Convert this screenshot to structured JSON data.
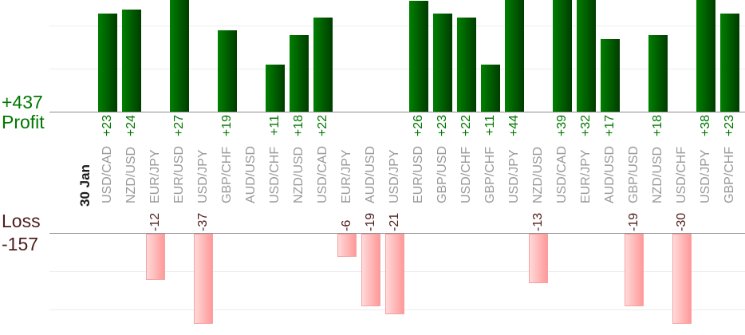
{
  "chart_data": {
    "type": "bar",
    "date": "30 Jan",
    "categories": [
      "USD/CAD",
      "NZD/USD",
      "EUR/JPY",
      "EUR/USD",
      "USD/JPY",
      "GBP/CHF",
      "AUD/USD",
      "USD/CHF",
      "NZD/USD",
      "USD/CAD",
      "EUR/JPY",
      "AUD/USD",
      "USD/JPY",
      "EUR/USD",
      "GBP/USD",
      "USD/CHF",
      "GBP/CHF",
      "USD/JPY",
      "NZD/USD",
      "USD/CAD",
      "EUR/JPY",
      "AUD/USD",
      "GBP/USD",
      "NZD/USD",
      "USD/CHF",
      "USD/JPY",
      "GBP/CHF"
    ],
    "values": [
      23,
      24,
      -12,
      27,
      -37,
      19,
      null,
      11,
      18,
      22,
      -6,
      -19,
      -21,
      26,
      23,
      22,
      11,
      44,
      -13,
      39,
      32,
      17,
      -19,
      18,
      -30,
      38,
      23
    ],
    "profit_total_label": "+437",
    "profit_axis_label": "Profit",
    "loss_axis_label": "Loss",
    "loss_total_label": "-157",
    "grid": "on",
    "gridline_step": 10,
    "legend": "none"
  },
  "colors": {
    "profit_text": "#007700",
    "loss_text": "#4d1c1c",
    "pair_label_text": "#999999",
    "date_label_text": "#1a1a1a",
    "axis_line": "#8c8c8c",
    "gridline": "#ededed",
    "profit_bar_gradient_left": "#008000",
    "profit_bar_gradient_right": "#003c00",
    "loss_bar_gradient_left": "#ffd9d9",
    "loss_bar_gradient_right": "#ff9999",
    "loss_bar_border": "#f5a3a3"
  }
}
